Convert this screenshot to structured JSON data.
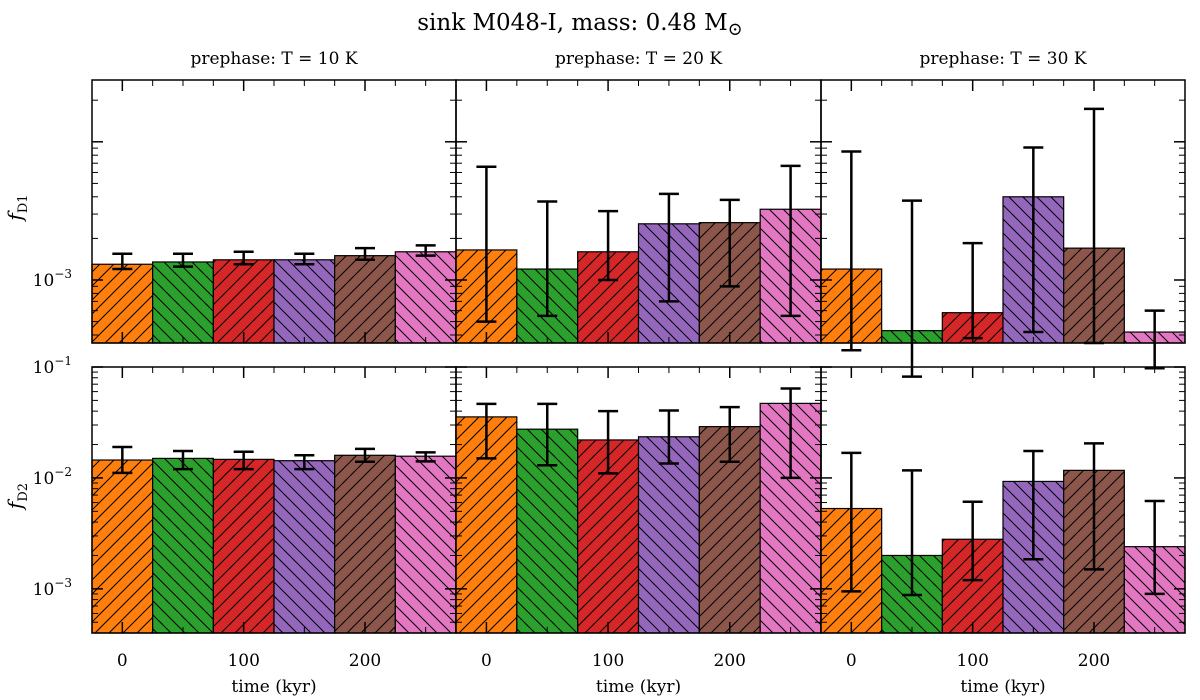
{
  "figure": {
    "title_text": "sink M048-I, mass: 0.48 M",
    "title_symbol": "⊙"
  },
  "colors": {
    "orange": "#ff7f0e",
    "green": "#2ca02c",
    "red": "#d62728",
    "purple": "#9467bd",
    "brown": "#8c564b",
    "pink": "#e377c2"
  },
  "chart_data": {
    "type": "bar",
    "scale": "log",
    "x": [
      0,
      50,
      100,
      150,
      200,
      250
    ],
    "bar_width_kyr": 50,
    "xlabel": "time (kyr)",
    "xticks": [
      0,
      100,
      200
    ],
    "xlim": [
      -25,
      275
    ],
    "hatch_pattern": [
      "/",
      "\\",
      "/",
      "\\",
      "/",
      "\\"
    ],
    "bar_colors": [
      "orange",
      "green",
      "red",
      "purple",
      "brown",
      "pink"
    ],
    "column_titles": [
      "prephase: T = 10 K",
      "prephase: T = 20 K",
      "prephase: T = 30 K"
    ],
    "rows": [
      {
        "ylabel": "f",
        "ylabel_sub": "D1",
        "ylim": [
          0.00035,
          0.028
        ],
        "ytick_labels": [
          {
            "value": 0.001,
            "base": "10",
            "exp": "−3"
          }
        ],
        "panels": [
          {
            "values": [
              0.0013,
              0.00135,
              0.0014,
              0.0014,
              0.0015,
              0.0016
            ],
            "err_low": [
              0.0012,
              0.00125,
              0.0013,
              0.0013,
              0.0014,
              0.0015
            ],
            "err_high": [
              0.00155,
              0.00155,
              0.0016,
              0.00155,
              0.0017,
              0.00178
            ]
          },
          {
            "values": [
              0.00165,
              0.0012,
              0.0016,
              0.00255,
              0.0026,
              0.00325
            ],
            "err_low": [
              0.0005,
              0.00055,
              0.001,
              0.0007,
              0.0009,
              0.00055
            ],
            "err_high": [
              0.0066,
              0.0037,
              0.00315,
              0.0042,
              0.0038,
              0.0067
            ]
          },
          {
            "values": [
              0.0012,
              0.00043,
              0.00058,
              0.004,
              0.0017,
              0.00042
            ],
            "err_low": [
              0.00031,
              0.0002,
              0.00038,
              0.00042,
              0.00035,
              0.00023
            ],
            "err_high": [
              0.0085,
              0.00375,
              0.00185,
              0.0091,
              0.0173,
              0.0006
            ]
          }
        ]
      },
      {
        "ylabel": "f",
        "ylabel_sub": "D2",
        "ylim": [
          0.0004,
          0.1
        ],
        "ytick_labels": [
          {
            "value": 0.1,
            "base": "10",
            "exp": "−1"
          },
          {
            "value": 0.01,
            "base": "10",
            "exp": "−2"
          },
          {
            "value": 0.001,
            "base": "10",
            "exp": "−3"
          }
        ],
        "panels": [
          {
            "values": [
              0.0145,
              0.015,
              0.0147,
              0.0143,
              0.016,
              0.0157
            ],
            "err_low": [
              0.0111,
              0.012,
              0.012,
              0.012,
              0.014,
              0.0141
            ],
            "err_high": [
              0.019,
              0.0175,
              0.0172,
              0.016,
              0.0183,
              0.017
            ]
          },
          {
            "values": [
              0.0355,
              0.0275,
              0.022,
              0.0235,
              0.029,
              0.047
            ],
            "err_low": [
              0.015,
              0.013,
              0.011,
              0.0135,
              0.014,
              0.01
            ],
            "err_high": [
              0.0465,
              0.0465,
              0.04,
              0.0405,
              0.0435,
              0.064
            ]
          },
          {
            "values": [
              0.0053,
              0.002,
              0.0028,
              0.0093,
              0.0117,
              0.0024
            ],
            "err_low": [
              0.00095,
              0.00088,
              0.0012,
              0.00185,
              0.0015,
              0.0009
            ],
            "err_high": [
              0.0168,
              0.0117,
              0.0061,
              0.0175,
              0.0205,
              0.0062
            ]
          }
        ]
      }
    ]
  }
}
